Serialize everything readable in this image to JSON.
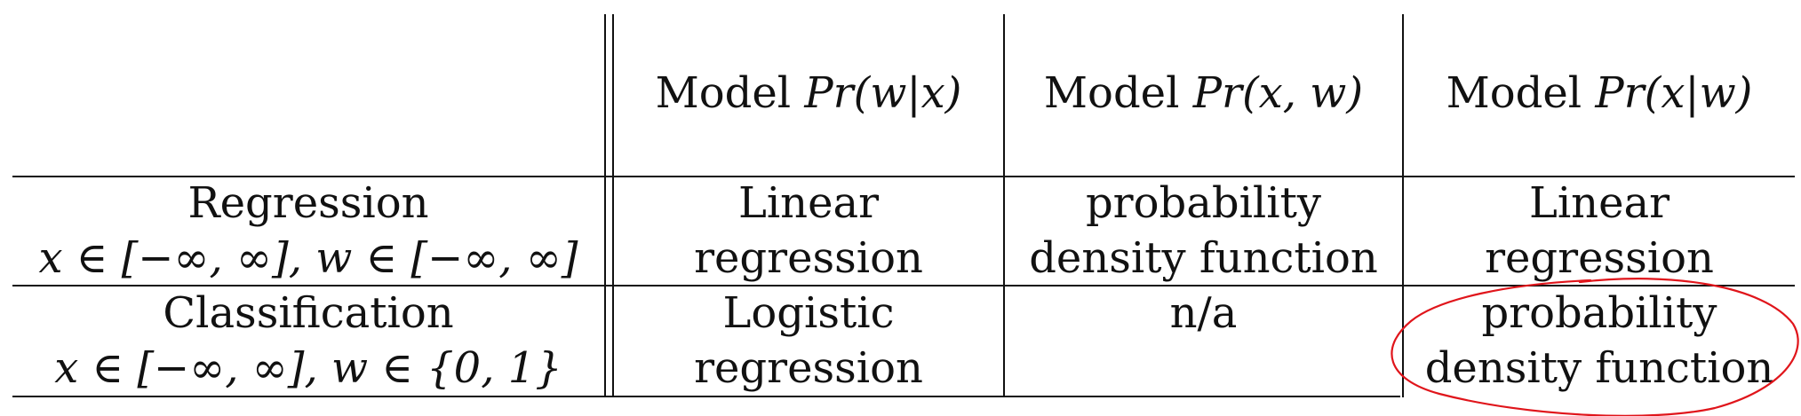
{
  "table": {
    "header": {
      "corner": "",
      "col1_prefix": "Model ",
      "col1_math": "Pr(w|x)",
      "col2_prefix": "Model ",
      "col2_math": "Pr(x, w)",
      "col3_prefix": "Model ",
      "col3_math": "Pr(x|w)"
    },
    "rows": [
      {
        "label": "Regression",
        "domain": "x ∈ [−∞, ∞], w ∈ [−∞, ∞]",
        "c1_line1": "Linear",
        "c1_line2": "regression",
        "c2_line1": "probability",
        "c2_line2": "density function",
        "c3_line1": "Linear",
        "c3_line2": "regression"
      },
      {
        "label": "Classification",
        "domain": "x ∈ [−∞, ∞], w ∈ {0, 1}",
        "c1_line1": "Logistic",
        "c1_line2": "regression",
        "c2_line1": "n/a",
        "c2_line2": "",
        "c3_line1": "probability",
        "c3_line2": "density function"
      }
    ]
  },
  "annotation": {
    "type": "ellipse",
    "color": "#e0151b",
    "target": "classification-pdf-cell"
  }
}
